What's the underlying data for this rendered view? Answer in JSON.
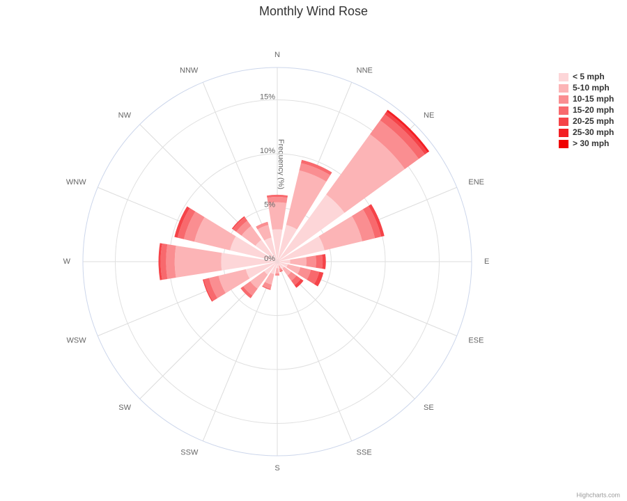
{
  "chart_data": {
    "type": "windrose",
    "title": "Monthly Wind Rose",
    "y_axis_label": "Frequency (%)",
    "credit": "Highcharts.com",
    "legend": "right",
    "categories": [
      "N",
      "NNE",
      "NE",
      "ENE",
      "E",
      "ESE",
      "SE",
      "SSE",
      "S",
      "SSW",
      "SW",
      "WSW",
      "W",
      "WNW",
      "NW",
      "NNW"
    ],
    "series": [
      {
        "name": "< 5 mph",
        "color": "#fdd6d8",
        "values": [
          3.0,
          3.5,
          7.7,
          4.5,
          1.2,
          1.0,
          0.8,
          0.4,
          0.6,
          1.2,
          1.5,
          3.0,
          5.2,
          4.5,
          2.5,
          2.3
        ]
      },
      {
        "name": "5-10 mph",
        "color": "#fcb4b6",
        "values": [
          2.5,
          5.2,
          6.9,
          3.6,
          1.5,
          1.2,
          0.8,
          0.3,
          0.5,
          1.0,
          1.6,
          2.6,
          4.3,
          3.4,
          1.6,
          1.2
        ]
      },
      {
        "name": "10-15 mph",
        "color": "#fa8e91",
        "values": [
          0.5,
          0.7,
          1.6,
          1.2,
          0.9,
          1.0,
          0.6,
          0.2,
          0.2,
          0.4,
          0.8,
          0.9,
          0.8,
          1.0,
          0.6,
          0.3
        ]
      },
      {
        "name": "15-20 mph",
        "color": "#f8696d",
        "values": [
          0.2,
          0.3,
          0.7,
          0.6,
          0.6,
          0.8,
          0.5,
          0.1,
          0,
          0.1,
          0.3,
          0.5,
          0.5,
          0.6,
          0.4,
          0
        ]
      },
      {
        "name": "20-25 mph",
        "color": "#f54348",
        "values": [
          0,
          0,
          0.3,
          0.3,
          0.3,
          0.4,
          0.3,
          0,
          0,
          0,
          0,
          0.1,
          0.2,
          0.3,
          0.1,
          0
        ]
      },
      {
        "name": "25-30 mph",
        "color": "#f31f24",
        "values": [
          0,
          0,
          0.2,
          0,
          0,
          0,
          0,
          0,
          0,
          0,
          0,
          0,
          0,
          0,
          0,
          0
        ]
      },
      {
        "name": "> 30 mph",
        "color": "#f00000",
        "values": [
          0,
          0,
          0,
          0,
          0,
          0,
          0,
          0,
          0,
          0,
          0,
          0,
          0,
          0,
          0,
          0
        ]
      }
    ],
    "ylim": [
      0,
      18
    ],
    "yticks": [
      {
        "value": 0,
        "label": "0%"
      },
      {
        "value": 5,
        "label": "5%"
      },
      {
        "value": 10,
        "label": "10%"
      },
      {
        "value": 15,
        "label": "15%"
      }
    ],
    "grid": true
  }
}
